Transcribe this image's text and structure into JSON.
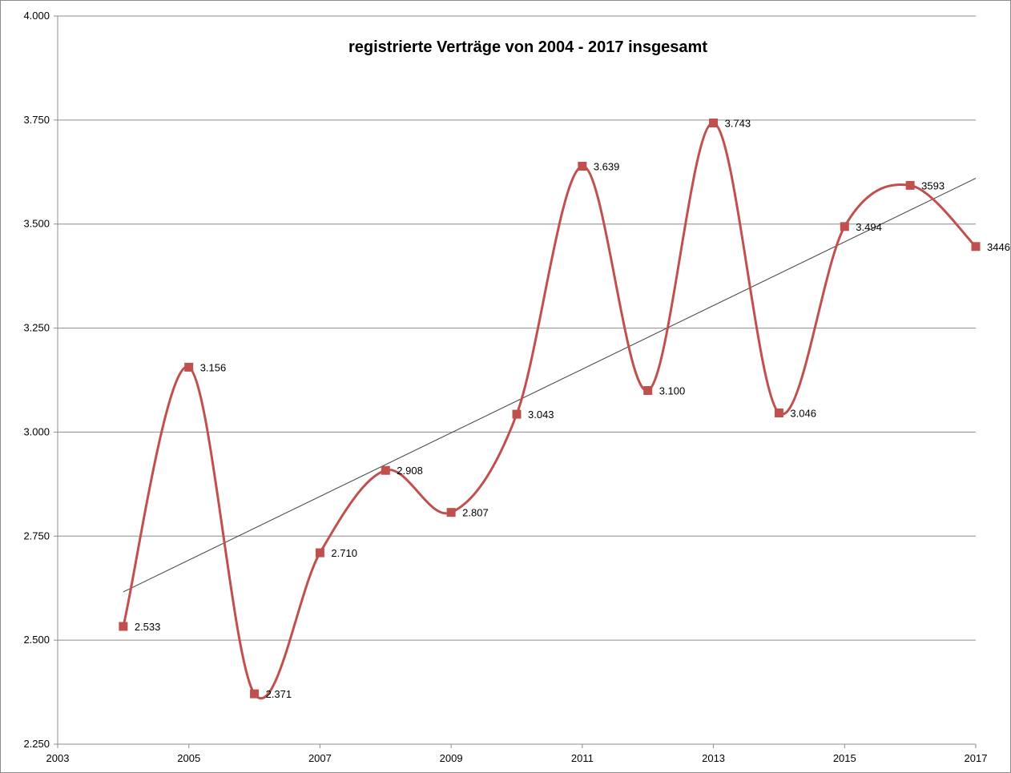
{
  "chart_data": {
    "type": "line",
    "title": "registrierte Verträge von 2004 - 2017 insgesamt",
    "xlabel": "",
    "ylabel": "",
    "xlim": [
      2003,
      2017
    ],
    "ylim": [
      2250,
      4000
    ],
    "x_ticks": [
      2003,
      2005,
      2007,
      2009,
      2011,
      2013,
      2015,
      2017
    ],
    "x_tick_labels": [
      "2003",
      "2005",
      "2007",
      "2009",
      "2011",
      "2013",
      "2015",
      "2017"
    ],
    "y_ticks": [
      2250,
      2500,
      2750,
      3000,
      3250,
      3500,
      3750,
      4000
    ],
    "y_tick_labels": [
      "2.250",
      "2.500",
      "2.750",
      "3.000",
      "3.250",
      "3.500",
      "3.750",
      "4.000"
    ],
    "grid": {
      "horizontal": true,
      "vertical": false
    },
    "legend": "none",
    "smooth": true,
    "series": [
      {
        "color": "#c0504d",
        "marker": "square",
        "x": [
          2004,
          2005,
          2006,
          2007,
          2008,
          2009,
          2010,
          2011,
          2012,
          2013,
          2014,
          2015,
          2016,
          2017
        ],
        "values": [
          2533,
          3156,
          2371,
          2710,
          2908,
          2807,
          3043,
          3639,
          3100,
          3743,
          3046,
          3494,
          3593,
          3446
        ],
        "data_labels": [
          "2.533",
          "3.156",
          "2.371",
          "2.710",
          "2.908",
          "2.807",
          "3.043",
          "3.639",
          "3.100",
          "3.743",
          "3.046",
          "3.494",
          "3593",
          "3446"
        ]
      }
    ],
    "trendline": {
      "type": "linear",
      "color": "#404040",
      "x": [
        2004,
        2017
      ],
      "values": [
        2616,
        3610
      ]
    }
  }
}
